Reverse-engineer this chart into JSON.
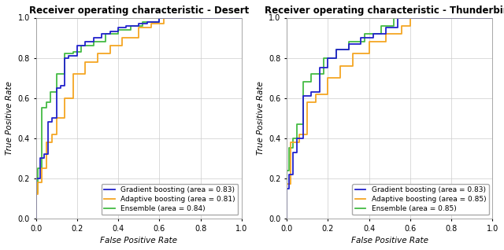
{
  "title_left": "Receiver operating characteristic - Desert",
  "title_right": "Receiver operating characteristic - Thunderbird",
  "xlabel": "False Positive Rate",
  "ylabel": "True Positive Rate",
  "colors": {
    "gradient": "#2222cc",
    "adaptive": "#f5a623",
    "ensemble": "#44bb44"
  },
  "legend_left": [
    "Gradient boosting (area = 0.83)",
    "Adaptive boosting (area = 0.81)",
    "Ensemble (area = 0.84)"
  ],
  "legend_right": [
    "Gradient boosting (area = 0.83)",
    "Adaptive boosting (area = 0.85)",
    "Ensemble (area = 0.85)"
  ],
  "background_color": "#ffffff",
  "grid_color": "#cccccc",
  "title_fontsize": 8.5,
  "label_fontsize": 7.5,
  "tick_fontsize": 7,
  "legend_fontsize": 6.5,
  "line_width": 1.3,
  "desert_gradient_fpr": [
    0.0,
    0.0,
    0.02,
    0.02,
    0.04,
    0.04,
    0.06,
    0.06,
    0.08,
    0.08,
    0.1,
    0.1,
    0.12,
    0.12,
    0.14,
    0.14,
    0.16,
    0.16,
    0.2,
    0.2,
    0.24,
    0.24,
    0.28,
    0.28,
    0.32,
    0.32,
    0.36,
    0.36,
    0.4,
    0.4,
    0.44,
    0.44,
    0.5,
    0.5,
    0.54,
    0.54,
    0.6,
    0.6,
    1.0
  ],
  "desert_gradient_tpr": [
    0.0,
    0.2,
    0.2,
    0.3,
    0.3,
    0.32,
    0.32,
    0.48,
    0.48,
    0.5,
    0.5,
    0.65,
    0.65,
    0.66,
    0.66,
    0.8,
    0.8,
    0.81,
    0.81,
    0.86,
    0.86,
    0.88,
    0.88,
    0.9,
    0.9,
    0.92,
    0.92,
    0.93,
    0.93,
    0.95,
    0.95,
    0.96,
    0.96,
    0.97,
    0.97,
    0.98,
    0.98,
    1.0,
    1.0
  ],
  "desert_adaptive_fpr": [
    0.0,
    0.0,
    0.01,
    0.01,
    0.03,
    0.03,
    0.05,
    0.05,
    0.08,
    0.08,
    0.1,
    0.1,
    0.14,
    0.14,
    0.18,
    0.18,
    0.24,
    0.24,
    0.3,
    0.3,
    0.36,
    0.36,
    0.42,
    0.42,
    0.5,
    0.5,
    0.56,
    0.56,
    0.62,
    0.62,
    1.0
  ],
  "desert_adaptive_tpr": [
    0.0,
    0.12,
    0.12,
    0.18,
    0.18,
    0.25,
    0.25,
    0.38,
    0.38,
    0.42,
    0.42,
    0.5,
    0.5,
    0.6,
    0.6,
    0.72,
    0.72,
    0.78,
    0.78,
    0.82,
    0.82,
    0.86,
    0.86,
    0.9,
    0.9,
    0.95,
    0.95,
    0.97,
    0.97,
    1.0,
    1.0
  ],
  "desert_ensemble_fpr": [
    0.0,
    0.0,
    0.01,
    0.01,
    0.03,
    0.03,
    0.05,
    0.05,
    0.07,
    0.07,
    0.1,
    0.1,
    0.14,
    0.14,
    0.18,
    0.18,
    0.22,
    0.22,
    0.28,
    0.28,
    0.34,
    0.34,
    0.4,
    0.4,
    0.46,
    0.46,
    0.52,
    0.52,
    0.6,
    0.6,
    1.0
  ],
  "desert_ensemble_tpr": [
    0.0,
    0.13,
    0.13,
    0.25,
    0.25,
    0.55,
    0.55,
    0.58,
    0.58,
    0.63,
    0.63,
    0.72,
    0.72,
    0.82,
    0.82,
    0.83,
    0.83,
    0.86,
    0.86,
    0.88,
    0.88,
    0.92,
    0.92,
    0.94,
    0.94,
    0.96,
    0.96,
    0.98,
    0.98,
    1.0,
    1.0
  ],
  "thunder_gradient_fpr": [
    0.0,
    0.0,
    0.01,
    0.01,
    0.03,
    0.03,
    0.05,
    0.05,
    0.08,
    0.08,
    0.12,
    0.12,
    0.16,
    0.16,
    0.2,
    0.2,
    0.24,
    0.24,
    0.3,
    0.3,
    0.36,
    0.36,
    0.42,
    0.42,
    0.48,
    0.48,
    0.54,
    0.54,
    1.0
  ],
  "thunder_gradient_tpr": [
    0.0,
    0.15,
    0.15,
    0.22,
    0.22,
    0.33,
    0.33,
    0.4,
    0.4,
    0.61,
    0.61,
    0.63,
    0.63,
    0.75,
    0.75,
    0.8,
    0.8,
    0.84,
    0.84,
    0.87,
    0.87,
    0.9,
    0.9,
    0.92,
    0.92,
    0.95,
    0.95,
    1.0,
    1.0
  ],
  "thunder_adaptive_fpr": [
    0.0,
    0.0,
    0.02,
    0.02,
    0.06,
    0.06,
    0.1,
    0.1,
    0.14,
    0.14,
    0.2,
    0.2,
    0.26,
    0.26,
    0.32,
    0.32,
    0.4,
    0.4,
    0.48,
    0.48,
    0.56,
    0.56,
    0.6,
    0.6,
    1.0
  ],
  "thunder_adaptive_tpr": [
    0.0,
    0.17,
    0.17,
    0.38,
    0.38,
    0.42,
    0.42,
    0.58,
    0.58,
    0.62,
    0.62,
    0.7,
    0.7,
    0.76,
    0.76,
    0.82,
    0.82,
    0.88,
    0.88,
    0.92,
    0.92,
    0.96,
    0.96,
    1.0,
    1.0
  ],
  "thunder_ensemble_fpr": [
    0.0,
    0.0,
    0.01,
    0.01,
    0.03,
    0.03,
    0.05,
    0.05,
    0.08,
    0.08,
    0.12,
    0.12,
    0.18,
    0.18,
    0.24,
    0.24,
    0.3,
    0.3,
    0.38,
    0.38,
    0.46,
    0.46,
    0.52,
    0.52,
    1.0
  ],
  "thunder_ensemble_tpr": [
    0.0,
    0.24,
    0.24,
    0.35,
    0.35,
    0.4,
    0.4,
    0.47,
    0.47,
    0.68,
    0.68,
    0.72,
    0.72,
    0.8,
    0.8,
    0.84,
    0.84,
    0.88,
    0.88,
    0.92,
    0.92,
    0.96,
    0.96,
    1.0,
    1.0
  ]
}
